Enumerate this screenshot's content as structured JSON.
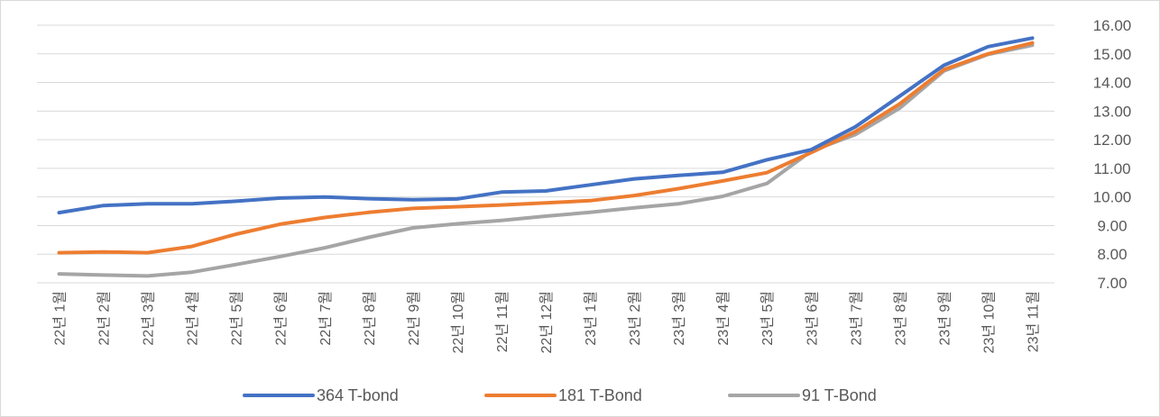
{
  "chart_data": {
    "type": "line",
    "categories": [
      "22년 1월",
      "22년 2월",
      "22년 3월",
      "22년 4월",
      "22년 5월",
      "22년 6월",
      "22년 7월",
      "22년 8월",
      "22년 9월",
      "22년 10월",
      "22년 11월",
      "22년 12월",
      "23년 1월",
      "23년 2월",
      "23년 3월",
      "23년 4월",
      "23년 5월",
      "23년 6월",
      "23년 7월",
      "23년 8월",
      "23년 9월",
      "23년 10월",
      "23년 11월"
    ],
    "series": [
      {
        "name": "364 T-bond",
        "color": "#4472c4",
        "values": [
          9.45,
          9.7,
          9.76,
          9.76,
          9.85,
          9.96,
          10.0,
          9.94,
          9.9,
          9.93,
          10.17,
          10.21,
          10.42,
          10.63,
          10.75,
          10.86,
          11.3,
          11.65,
          12.45,
          13.52,
          14.6,
          15.25,
          15.55
        ]
      },
      {
        "name": "181 T-Bond",
        "color": "#ed7d31",
        "values": [
          8.05,
          8.08,
          8.05,
          8.27,
          8.7,
          9.05,
          9.28,
          9.46,
          9.6,
          9.66,
          9.72,
          9.79,
          9.87,
          10.05,
          10.29,
          10.56,
          10.85,
          11.55,
          12.28,
          13.25,
          14.45,
          15.0,
          15.38
        ]
      },
      {
        "name": "91 T-Bond",
        "color": "#a5a5a5",
        "values": [
          7.31,
          7.27,
          7.24,
          7.37,
          7.64,
          7.92,
          8.22,
          8.59,
          8.92,
          9.06,
          9.18,
          9.33,
          9.46,
          9.62,
          9.76,
          10.02,
          10.47,
          11.6,
          12.18,
          13.1,
          14.4,
          14.98,
          15.3
        ]
      }
    ],
    "yticks": [
      "7.00",
      "8.00",
      "9.00",
      "10.00",
      "11.00",
      "12.00",
      "13.00",
      "14.00",
      "15.00",
      "16.00"
    ],
    "ylim": [
      7,
      16
    ],
    "yaxis_side": "right",
    "grid": true,
    "legend": "bottom-center"
  }
}
